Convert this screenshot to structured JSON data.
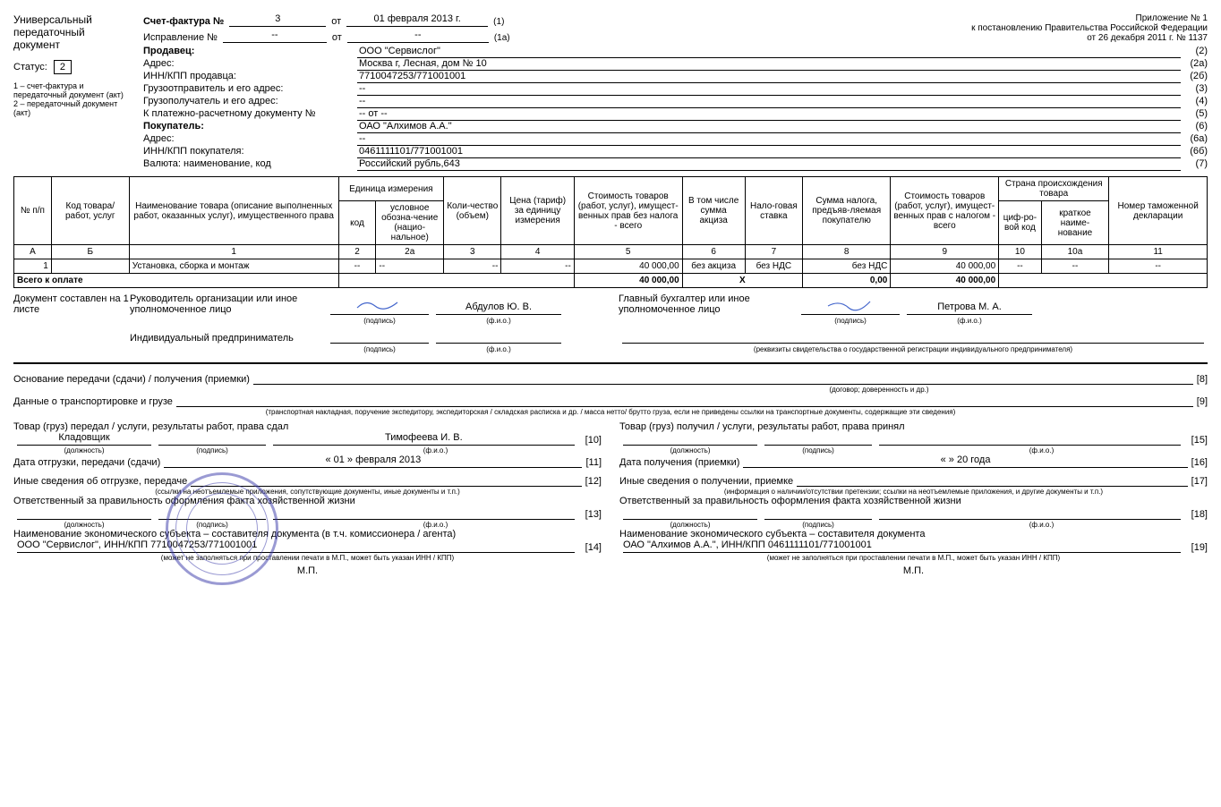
{
  "attachment": {
    "l1": "Приложение № 1",
    "l2": "к постановлению Правительства Российской Федерации",
    "l3": "от 26 декабря 2011 г. № 1137"
  },
  "left": {
    "title": "Универсальный передаточный документ",
    "status_lbl": "Статус:",
    "status": "2",
    "note1": "1 – счет-фактура и передаточный документ (акт)",
    "note2": "2 – передаточный документ (акт)"
  },
  "hdr": {
    "invoice_lbl": "Счет-фактура №",
    "invoice_no": "3",
    "ot": "от",
    "invoice_date": "01 февраля 2013 г.",
    "t1": "(1)",
    "corr_lbl": "Исправление №",
    "corr_no": "--",
    "corr_date": "--",
    "t2": "(1а)"
  },
  "info": [
    {
      "lbl": "Продавец:",
      "val": "ООО \"Сервислог\"",
      "n": "(2)",
      "b": true
    },
    {
      "lbl": "Адрес:",
      "val": "Москва г, Лесная, дом № 10",
      "n": "(2а)"
    },
    {
      "lbl": "ИНН/КПП продавца:",
      "val": "7710047253/771001001",
      "n": "(2б)"
    },
    {
      "lbl": "Грузоотправитель и его адрес:",
      "val": "--",
      "n": "(3)"
    },
    {
      "lbl": "Грузополучатель и его адрес:",
      "val": "--",
      "n": "(4)"
    },
    {
      "lbl": "К платежно-расчетному документу №",
      "val": "-- от --",
      "n": "(5)"
    },
    {
      "lbl": "Покупатель:",
      "val": "ОАО \"Алхимов А.А.\"",
      "n": "(6)",
      "b": true
    },
    {
      "lbl": "Адрес:",
      "val": "--",
      "n": "(6а)"
    },
    {
      "lbl": "ИНН/КПП покупателя:",
      "val": "0461111101/771001001",
      "n": "(6б)"
    },
    {
      "lbl": "Валюта: наименование, код",
      "val": "Российский рубль,643",
      "n": "(7)"
    }
  ],
  "thead": {
    "c_np": "№ п/п",
    "c_code": "Код товара/ работ, услуг",
    "c_name": "Наименование товара (описание выполненных работ, оказанных услуг), имущественного права",
    "c_unit": "Единица измерения",
    "c_ucode": "код",
    "c_uname": "условное обозна-чение (нацио-нальное)",
    "c_qty": "Коли-чество (объем)",
    "c_price": "Цена (тариф) за единицу измерения",
    "c_cost": "Стоимость товаров (работ, услуг), имущест-венных прав без налога - всего",
    "c_excise": "В том числе сумма акциза",
    "c_rate": "Нало-говая ставка",
    "c_tax": "Сумма налога, предъяв-ляемая покупателю",
    "c_total": "Стоимость товаров (работ, услуг), имущест-венных прав с налогом - всего",
    "c_country": "Страна происхождения товара",
    "c_ccode": "циф-ро-вой код",
    "c_cname": "краткое наиме-нование",
    "c_decl": "Номер таможенной декларации"
  },
  "tcode": {
    "a": "А",
    "b": "Б",
    "c1": "1",
    "c2": "2",
    "c2a": "2а",
    "c3": "3",
    "c4": "4",
    "c5": "5",
    "c6": "6",
    "c7": "7",
    "c8": "8",
    "c9": "9",
    "c10": "10",
    "c10a": "10а",
    "c11": "11"
  },
  "row": {
    "n": "1",
    "code": "",
    "name": "Установка, сборка и монтаж",
    "ucode": "--",
    "uname": "--",
    "qty": "--",
    "price": "--",
    "cost": "40 000,00",
    "excise": "без акциза",
    "rate": "без НДС",
    "tax": "без НДС",
    "total": "40 000,00",
    "cc": "--",
    "cn": "--",
    "decl": "--"
  },
  "totals": {
    "lbl": "Всего к оплате",
    "cost": "40 000,00",
    "x": "X",
    "tax": "0,00",
    "total": "40 000,00"
  },
  "sig": {
    "doc_on": "Документ составлен на 1 листе",
    "ruk": "Руководитель организации или иное уполномоченное лицо",
    "ruk_name": "Абдулов Ю. В.",
    "glb": "Главный бухгалтер или иное уполномоченное лицо",
    "glb_name": "Петрова М. А.",
    "ip": "Индивидуальный предприниматель",
    "pod": "(подпись)",
    "fio": "(ф.и.о.)",
    "rekv": "(реквизиты свидетельства о государственной регистрации индивидуального предпринимателя)"
  },
  "foot": {
    "osn": "Основание передачи (сдачи) / получения (приемки)",
    "osn_sub": "(договор; доверенность и др.)",
    "osn_n": "[8]",
    "trans": "Данные о транспортировке и грузе",
    "trans_sub": "(транспортная накладная, поручение экспедитору, экспедиторская / складская расписка и др. / масса нетто/ брутто груза, если не приведены ссылки на транспортные документы, содержащие эти сведения)",
    "trans_n": "[9]",
    "l_give": "Товар (груз) передал / услуги, результаты работ, права сдал",
    "l_pos": "Кладовщик",
    "l_name": "Тимофеева И. В.",
    "l10": "[10]",
    "l_date": "Дата отгрузки, передачи (сдачи)",
    "l_date_v": "« 01 » февраля 2013",
    "l11": "[11]",
    "l_other": "Иные сведения об отгрузке, передаче",
    "l_other_sub": "(ссылки на неотъемлемые приложения, сопутствующие документы, иные документы и т.п.)",
    "l12": "[12]",
    "l_resp": "Ответственный за правильность оформления факта хозяйственной жизни",
    "l13": "[13]",
    "l_org": "Наименование экономического субъекта – составителя документа (в т.ч. комиссионера / агента)",
    "l_org_v": "ООО \"Сервислог\", ИНН/КПП 7710047253/771001001",
    "l_org_sub": "(может не заполняться при проставлении печати в М.П., может быть указан ИНН / КПП)",
    "l14": "[14]",
    "r_recv": "Товар (груз) получил / услуги, результаты работ, права принял",
    "r15": "[15]",
    "r_date": "Дата получения (приемки)",
    "r_date_v": "«    »                    20      года",
    "r16": "[16]",
    "r_other": "Иные сведения о получении, приемке",
    "r_other_sub": "(информация о наличии/отсутствии претензии; ссылки на неотъемлемые приложения, и другие документы и т.п.)",
    "r17": "[17]",
    "r_resp": "Ответственный за правильность оформления факта хозяйственной жизни",
    "r18": "[18]",
    "r_org": "Наименование экономического субъекта – составителя документа",
    "r_org_v": "ОАО \"Алхимов А.А.\", ИНН/КПП 0461111101/771001001",
    "r19": "[19]",
    "pos": "(должность)",
    "mp": "М.П."
  }
}
